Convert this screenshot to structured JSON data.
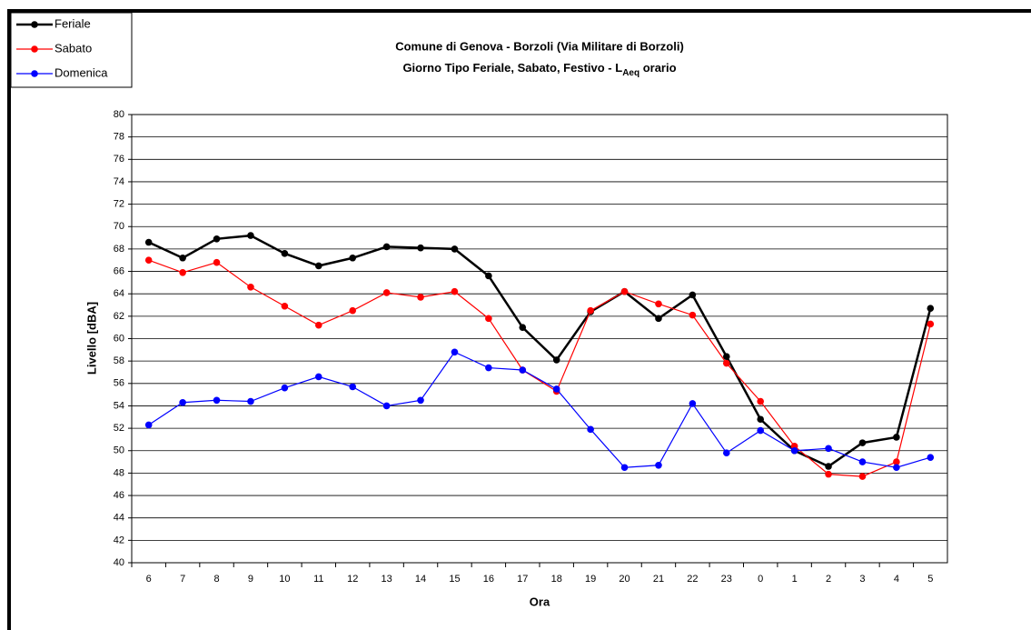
{
  "chart_data": {
    "type": "line",
    "title": "Comune di Genova - Borzoli (Via Militare di Borzoli)",
    "subtitle": {
      "text": "Giorno Tipo Feriale, Sabato, Festivo - L",
      "subscript": "Aeq",
      "suffix": " orario"
    },
    "x_label": "Ora",
    "y_label": "Livello [dBA]",
    "categories": [
      "6",
      "7",
      "8",
      "9",
      "10",
      "11",
      "12",
      "13",
      "14",
      "15",
      "16",
      "17",
      "18",
      "19",
      "20",
      "21",
      "22",
      "23",
      "0",
      "1",
      "2",
      "3",
      "4",
      "5"
    ],
    "series": [
      {
        "name": "Feriale",
        "color": "#000000",
        "values": [
          68.6,
          67.2,
          68.9,
          69.2,
          67.6,
          66.5,
          67.2,
          68.2,
          68.1,
          68.0,
          65.6,
          61.0,
          58.1,
          62.4,
          64.2,
          61.8,
          63.9,
          58.4,
          52.8,
          50.0,
          48.6,
          50.7,
          51.2,
          62.7
        ]
      },
      {
        "name": "Sabato",
        "color": "#ff0000",
        "values": [
          67.0,
          65.9,
          66.8,
          64.6,
          62.9,
          61.2,
          62.5,
          64.1,
          63.7,
          64.2,
          61.8,
          57.2,
          55.3,
          62.5,
          64.2,
          63.1,
          62.1,
          57.8,
          54.4,
          50.4,
          47.9,
          47.7,
          49.0,
          61.3
        ]
      },
      {
        "name": "Domenica",
        "color": "#0000ff",
        "values": [
          52.3,
          54.3,
          54.5,
          54.4,
          55.6,
          56.6,
          55.7,
          54.0,
          54.5,
          58.8,
          57.4,
          57.2,
          55.5,
          51.9,
          48.5,
          48.7,
          54.2,
          49.8,
          51.8,
          50.0,
          50.2,
          49.0,
          48.5,
          49.4
        ]
      }
    ],
    "ylim": [
      40,
      80
    ],
    "yticks": [
      40,
      42,
      44,
      46,
      48,
      50,
      52,
      54,
      56,
      58,
      60,
      62,
      64,
      66,
      68,
      70,
      72,
      74,
      76,
      78,
      80
    ],
    "grid": true,
    "legend": "top-left"
  }
}
